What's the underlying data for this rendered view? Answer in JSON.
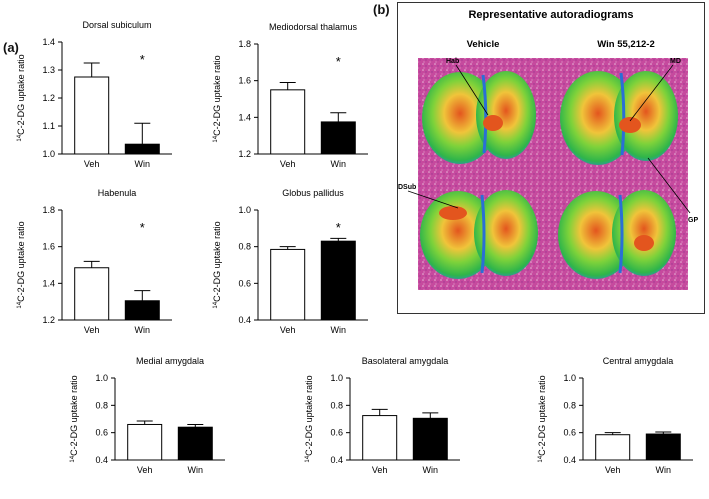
{
  "panel_a_label": "(a)",
  "panel_b_label": "(b)",
  "chart_data": [
    {
      "type": "bar",
      "title": "Dorsal subiculum",
      "categories": [
        "Veh",
        "Win"
      ],
      "values": [
        1.275,
        1.035
      ],
      "errors": [
        0.05,
        0.075
      ],
      "ylim": [
        1.0,
        1.4
      ],
      "yticks": [
        "1.0",
        "1.1",
        "1.2",
        "1.3",
        "1.4"
      ],
      "ylabel": "14C-2-DG uptake ratio",
      "significance": "*",
      "colors": [
        "#ffffff",
        "#000000"
      ]
    },
    {
      "type": "bar",
      "title": "Mediodorsal thalamus",
      "categories": [
        "Veh",
        "Win"
      ],
      "values": [
        1.55,
        1.375
      ],
      "errors": [
        0.04,
        0.05
      ],
      "ylim": [
        1.2,
        1.8
      ],
      "yticks": [
        "1.2",
        "1.4",
        "1.6",
        "1.8"
      ],
      "ylabel": "14C-2-DG uptake ratio",
      "significance": "*",
      "colors": [
        "#ffffff",
        "#000000"
      ]
    },
    {
      "type": "bar",
      "title": "Habenula",
      "categories": [
        "Veh",
        "Win"
      ],
      "values": [
        1.485,
        1.305
      ],
      "errors": [
        0.035,
        0.055
      ],
      "ylim": [
        1.2,
        1.8
      ],
      "yticks": [
        "1.2",
        "1.4",
        "1.6",
        "1.8"
      ],
      "ylabel": "14C-2-DG uptake ratio",
      "significance": "*",
      "colors": [
        "#ffffff",
        "#000000"
      ]
    },
    {
      "type": "bar",
      "title": "Globus pallidus",
      "categories": [
        "Veh",
        "Win"
      ],
      "values": [
        0.785,
        0.83
      ],
      "errors": [
        0.015,
        0.015
      ],
      "ylim": [
        0.4,
        1.0
      ],
      "yticks": [
        "0.4",
        "0.6",
        "0.8",
        "1.0"
      ],
      "ylabel": "14C-2-DG uptake ratio",
      "significance": "*",
      "colors": [
        "#ffffff",
        "#000000"
      ]
    },
    {
      "type": "bar",
      "title": "Medial amygdala",
      "categories": [
        "Veh",
        "Win"
      ],
      "values": [
        0.66,
        0.64
      ],
      "errors": [
        0.025,
        0.02
      ],
      "ylim": [
        0.4,
        1.0
      ],
      "yticks": [
        "0.4",
        "0.6",
        "0.8",
        "1.0"
      ],
      "ylabel": "14C-2-DG uptake ratio",
      "significance": "",
      "colors": [
        "#ffffff",
        "#000000"
      ]
    },
    {
      "type": "bar",
      "title": "Basolateral amygdala",
      "categories": [
        "Veh",
        "Win"
      ],
      "values": [
        0.725,
        0.705
      ],
      "errors": [
        0.045,
        0.04
      ],
      "ylim": [
        0.4,
        1.0
      ],
      "yticks": [
        "0.4",
        "0.6",
        "0.8",
        "1.0"
      ],
      "ylabel": "14C-2-DG uptake ratio",
      "significance": "",
      "colors": [
        "#ffffff",
        "#000000"
      ]
    },
    {
      "type": "bar",
      "title": "Central amygdala",
      "categories": [
        "Veh",
        "Win"
      ],
      "values": [
        0.585,
        0.59
      ],
      "errors": [
        0.015,
        0.015
      ],
      "ylim": [
        0.4,
        1.0
      ],
      "yticks": [
        "0.4",
        "0.6",
        "0.8",
        "1.0"
      ],
      "ylabel": "14C-2-DG uptake ratio",
      "significance": "",
      "colors": [
        "#ffffff",
        "#000000"
      ]
    }
  ],
  "autoradiograms": {
    "title": "Representative autoradiograms",
    "col_vehicle": "Vehicle",
    "col_win": "Win 55,212-2",
    "labels": {
      "hab": "Hab",
      "md": "MD",
      "dsub": "DSub",
      "gp": "GP"
    },
    "colors": {
      "background": "#c9469c",
      "tissue_outer": "#33bb33",
      "tissue_mid": "#e8e23a",
      "tissue_hot": "#e3551e",
      "cold": "#2a6fd6"
    }
  }
}
